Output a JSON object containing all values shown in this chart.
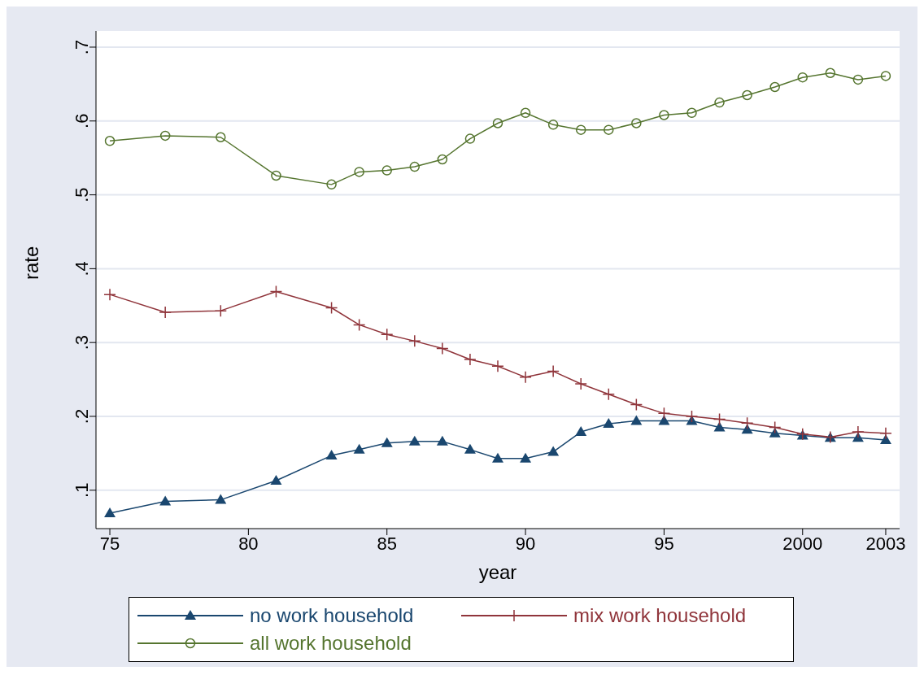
{
  "chart_data": {
    "type": "line",
    "xlabel": "year",
    "ylabel": "rate",
    "x": [
      1975,
      1977,
      1979,
      1981,
      1983,
      1984,
      1985,
      1986,
      1987,
      1988,
      1989,
      1990,
      1991,
      1992,
      1993,
      1994,
      1995,
      1996,
      1997,
      1998,
      1999,
      2000,
      2001,
      2002,
      2003
    ],
    "series": [
      {
        "name": "no work household",
        "color": "#1a476f",
        "marker": "triangle",
        "values": [
          0.069,
          0.085,
          0.087,
          0.113,
          0.147,
          0.155,
          0.164,
          0.166,
          0.166,
          0.155,
          0.143,
          0.143,
          0.152,
          0.179,
          0.19,
          0.194,
          0.194,
          0.194,
          0.185,
          0.182,
          0.177,
          0.174,
          0.171,
          0.171,
          0.168
        ]
      },
      {
        "name": "mix work household",
        "color": "#90353b",
        "marker": "cross",
        "values": [
          0.365,
          0.341,
          0.343,
          0.369,
          0.347,
          0.324,
          0.311,
          0.302,
          0.292,
          0.277,
          0.268,
          0.253,
          0.261,
          0.244,
          0.23,
          0.216,
          0.204,
          0.2,
          0.196,
          0.191,
          0.185,
          0.176,
          0.172,
          0.179,
          0.177
        ]
      },
      {
        "name": "all work household",
        "color": "#55752f",
        "marker": "circle",
        "values": [
          0.573,
          0.58,
          0.578,
          0.526,
          0.514,
          0.531,
          0.533,
          0.538,
          0.548,
          0.576,
          0.597,
          0.611,
          0.595,
          0.588,
          0.588,
          0.597,
          0.608,
          0.611,
          0.625,
          0.635,
          0.646,
          0.659,
          0.665,
          0.656,
          0.661
        ]
      }
    ],
    "xlim": [
      1974.5,
      2003.5
    ],
    "xticks": [
      {
        "value": 1975,
        "label": "75"
      },
      {
        "value": 1980,
        "label": "80"
      },
      {
        "value": 1985,
        "label": "85"
      },
      {
        "value": 1990,
        "label": "90"
      },
      {
        "value": 1995,
        "label": "95"
      },
      2000,
      2003
    ],
    "ylim": [
      0.048,
      0.722
    ],
    "yticks": [
      {
        "value": 0.1,
        "label": ".1"
      },
      {
        "value": 0.2,
        "label": ".2"
      },
      {
        "value": 0.3,
        "label": ".3"
      },
      {
        "value": 0.4,
        "label": ".4"
      },
      {
        "value": 0.5,
        "label": ".5"
      },
      {
        "value": 0.6,
        "label": ".6"
      },
      {
        "value": 0.7,
        "label": ".7"
      }
    ],
    "grid": "y",
    "legend": "bottom"
  }
}
